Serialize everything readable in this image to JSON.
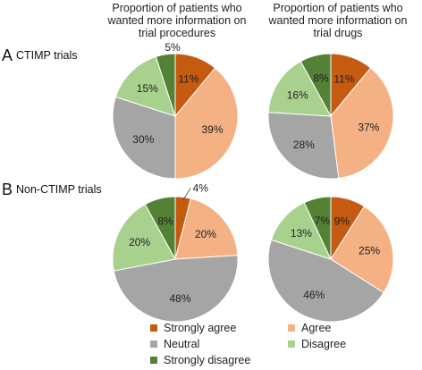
{
  "column_titles": [
    "Proportion of patients who wanted more information on trial procedures",
    "Proportion of patients who wanted more information on trial drugs"
  ],
  "rows": [
    {
      "letter": "A",
      "label": "CTIMP trials"
    },
    {
      "letter": "B",
      "label": "Non-CTIMP trials"
    }
  ],
  "colors": {
    "Strongly agree": "#c55a11",
    "Agree": "#f4b183",
    "Neutral": "#a5a5a5",
    "Disagree": "#a9d18e",
    "Strongly disagree": "#548235"
  },
  "legend": [
    "Strongly agree",
    "Agree",
    "Neutral",
    "Disagree",
    "Strongly disagree"
  ],
  "chart_data": [
    {
      "type": "pie",
      "row": "A",
      "column": "trial procedures",
      "categories": [
        "Strongly agree",
        "Agree",
        "Neutral",
        "Disagree",
        "Strongly disagree"
      ],
      "values": [
        11,
        39,
        30,
        15,
        5
      ],
      "labels": [
        "11%",
        "39%",
        "30%",
        "15%",
        "5%"
      ]
    },
    {
      "type": "pie",
      "row": "A",
      "column": "trial drugs",
      "categories": [
        "Strongly agree",
        "Agree",
        "Neutral",
        "Disagree",
        "Strongly disagree"
      ],
      "values": [
        11,
        37,
        28,
        16,
        8
      ],
      "labels": [
        "11%",
        "37%",
        "28%",
        "16%",
        "8%"
      ]
    },
    {
      "type": "pie",
      "row": "B",
      "column": "trial procedures",
      "categories": [
        "Strongly agree",
        "Agree",
        "Neutral",
        "Disagree",
        "Strongly disagree"
      ],
      "values": [
        4,
        20,
        48,
        20,
        8
      ],
      "labels": [
        "4%",
        "20%",
        "48%",
        "20%",
        "8%"
      ]
    },
    {
      "type": "pie",
      "row": "B",
      "column": "trial drugs",
      "categories": [
        "Strongly agree",
        "Agree",
        "Neutral",
        "Disagree",
        "Strongly disagree"
      ],
      "values": [
        9,
        25,
        46,
        13,
        7
      ],
      "labels": [
        "9%",
        "25%",
        "46%",
        "13%",
        "7%"
      ]
    }
  ]
}
